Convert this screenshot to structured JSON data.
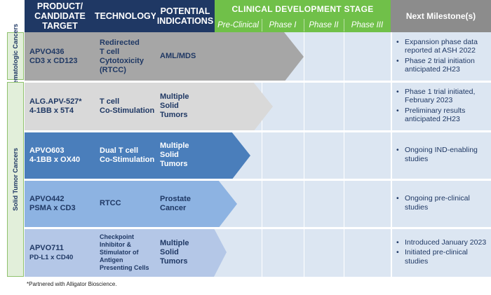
{
  "header": {
    "product": "PRODUCT/ CANDIDATE TARGET",
    "technology": "TECHNOLOGY",
    "indications": "POTENTIAL INDICATIONS",
    "stage": "CLINICAL DEVELOPMENT STAGE",
    "phases": [
      "Pre-Clinical",
      "Phase I",
      "Phase II",
      "Phase III"
    ],
    "milestone": "Next Milestone(s)"
  },
  "side_labels": {
    "heme": "Hematologic Cancers",
    "solid": "Solid Tumor Cancers"
  },
  "rows": [
    {
      "product_line1": "APVO436",
      "product_line2": "CD3 x CD123",
      "technology": [
        "Redirected",
        "T cell",
        "Cytotoxicity",
        "(RTCC)"
      ],
      "indication": [
        "AML/MDS"
      ],
      "stage_label": "Phase I",
      "milestones": [
        "Expansion phase data reported at ASH 2022",
        "Phase 2 trial initiation anticipated 2H23"
      ]
    },
    {
      "product_line1": "ALG.APV-527*",
      "product_line2": "4-1BB x 5T4",
      "technology": [
        "T cell",
        "Co-Stimulation"
      ],
      "indication": [
        "Multiple",
        "Solid",
        "Tumors"
      ],
      "stage_label": "Phase I",
      "milestones": [
        "Phase 1 trial initiated, February 2023",
        "Preliminary results anticipated 2H23"
      ]
    },
    {
      "product_line1": "APVO603",
      "product_line2": "4-1BB x OX40",
      "technology": [
        "Dual T cell",
        "Co-Stimulation"
      ],
      "indication": [
        "Multiple",
        "Solid",
        "Tumors"
      ],
      "stage_label": "Pre-Clinical",
      "milestones": [
        "Ongoing IND-enabling studies"
      ]
    },
    {
      "product_line1": "APVO442",
      "product_line2": "PSMA x CD3",
      "technology": [
        "RTCC"
      ],
      "indication": [
        "Prostate",
        "Cancer"
      ],
      "stage_label": "Pre-Clinical",
      "milestones": [
        "Ongoing pre-clinical studies"
      ]
    },
    {
      "product_line1": "APVO711",
      "product_line2": "PD-L1 x CD40",
      "technology": [
        "Checkpoint",
        "Inhibitor &",
        "Stimulator of",
        "Antigen",
        "Presenting Cells"
      ],
      "indication": [
        "Multiple",
        "Solid",
        "Tumors"
      ],
      "stage_label": "Pre-Clinical",
      "milestones": [
        "Introduced January 2023",
        "Initiated pre-clinical studies"
      ]
    }
  ],
  "footnote": "*Partnered with Alligator Bioscience.",
  "colors": {
    "navy": "#1f3864",
    "green": "#70c049",
    "gray": "#8c8c8c",
    "row1": "#a6a6a6",
    "row2": "#d9d9d9",
    "row3": "#4a7ebb",
    "row4": "#8db3e2",
    "row5": "#b4c7e7",
    "milestone_bg": "#dce6f2"
  }
}
